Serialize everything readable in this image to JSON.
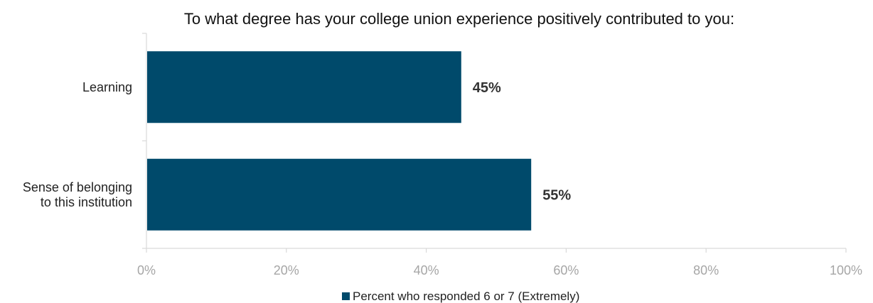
{
  "chart_data": {
    "type": "bar",
    "orientation": "horizontal",
    "title": "To what degree has your college union experience positively contributed to you:",
    "categories": [
      [
        "Learning"
      ],
      [
        "Sense of belonging",
        "to this institution"
      ]
    ],
    "series": [
      {
        "name": "Percent who responded 6 or 7 (Extremely)",
        "values": [
          45,
          55
        ],
        "color": "#004a6b"
      }
    ],
    "data_labels": [
      "45%",
      "55%"
    ],
    "xlim": [
      0,
      100
    ],
    "x_ticks": [
      "0%",
      "20%",
      "40%",
      "60%",
      "80%",
      "100%"
    ],
    "grid": false,
    "legend_position": "bottom"
  }
}
